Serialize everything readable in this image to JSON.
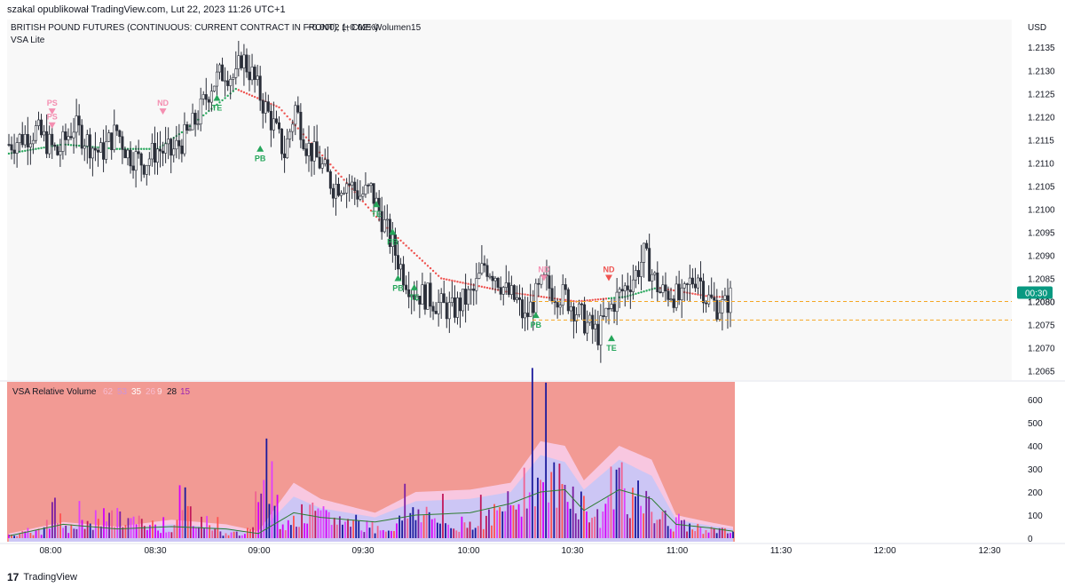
{
  "header": {
    "publisher": "szakal opublikował TradingView.com, Lut 22, 2023 11:26 UTC+1"
  },
  "main_pane": {
    "symbol_line": {
      "title": "BRITISH POUND FUTURES (CONTINUOUS: CURRENT CONTRACT IN FRONT), 1, CME",
      "change": "+0.0002 (+0.02%)",
      "volume_label": "Wolumen15"
    },
    "indicator_label": "VSA Lite",
    "currency": "USD",
    "last_price_label": "1.2080",
    "countdown_label": "00:30",
    "price_ticks": [
      "1.2135",
      "1.2130",
      "1.2125",
      "1.2120",
      "1.2115",
      "1.2110",
      "1.2105",
      "1.2100",
      "1.2095",
      "1.2090",
      "1.2085",
      "1.2080",
      "1.2075",
      "1.2070",
      "1.2065"
    ]
  },
  "volume_pane": {
    "title": "VSA Relative Volume",
    "values": [
      "62",
      "53",
      "35",
      "26",
      "9",
      "28",
      "15"
    ],
    "value_colors": [
      "#f8bbd0",
      "#ce93d8",
      "#ffffff",
      "#f8bbd0",
      "#fce4ec",
      "#131722",
      "#9c27b0"
    ],
    "ticks": [
      "600",
      "500",
      "400",
      "300",
      "200",
      "100",
      "0"
    ]
  },
  "time_axis": [
    "08:00",
    "08:30",
    "09:00",
    "09:30",
    "10:00",
    "10:30",
    "11:00",
    "11:30",
    "12:00",
    "12:30"
  ],
  "markers": [
    {
      "text": "PS",
      "color": "#f48fb1"
    },
    {
      "text": "PS",
      "color": "#f48fb1"
    },
    {
      "text": "ND",
      "color": "#f48fb1"
    },
    {
      "text": "TE",
      "color": "#26a65b"
    },
    {
      "text": "PB",
      "color": "#26a65b"
    },
    {
      "text": "TE",
      "color": "#26a65b"
    },
    {
      "text": "PB",
      "color": "#26a65b"
    },
    {
      "text": "PB",
      "color": "#26a65b"
    },
    {
      "text": "TE",
      "color": "#26a65b"
    },
    {
      "text": "ND",
      "color": "#f48fb1"
    },
    {
      "text": "ND",
      "color": "#ef5350"
    },
    {
      "text": "PB",
      "color": "#26a65b"
    },
    {
      "text": "TE",
      "color": "#26a65b"
    }
  ],
  "footer": {
    "brand": "TradingView"
  },
  "colors": {
    "volume_pane_bg": "#f29a94",
    "trail_up": "#26a65b",
    "trail_down": "#ef5350",
    "dashed_level": "#f5a623",
    "price_badge": "#089981"
  },
  "chart_data": [
    {
      "type": "candlestick",
      "ylim": [
        1.2063,
        1.2141
      ],
      "x_ticks": [
        "08:00",
        "08:30",
        "09:00",
        "09:30",
        "10:00",
        "10:30",
        "11:00",
        "11:30",
        "12:00",
        "12:30"
      ],
      "price_path": [
        [
          0,
          1.2114
        ],
        [
          10,
          1.2117
        ],
        [
          18,
          1.2112
        ],
        [
          24,
          1.2118
        ],
        [
          30,
          1.2114
        ],
        [
          34,
          1.2112
        ],
        [
          40,
          1.2117
        ],
        [
          44,
          1.2112
        ],
        [
          50,
          1.211
        ],
        [
          55,
          1.2113
        ],
        [
          60,
          1.2112
        ],
        [
          66,
          1.2116
        ],
        [
          70,
          1.212
        ],
        [
          75,
          1.2127
        ],
        [
          80,
          1.213
        ],
        [
          84,
          1.2128
        ],
        [
          86,
          1.2133
        ],
        [
          90,
          1.2129
        ],
        [
          94,
          1.2123
        ],
        [
          98,
          1.2118
        ],
        [
          102,
          1.2112
        ],
        [
          106,
          1.2122
        ],
        [
          110,
          1.2114
        ],
        [
          115,
          1.211
        ],
        [
          120,
          1.2105
        ],
        [
          125,
          1.2106
        ],
        [
          130,
          1.2103
        ],
        [
          134,
          1.2104
        ],
        [
          138,
          1.2098
        ],
        [
          142,
          1.2092
        ],
        [
          146,
          1.2086
        ],
        [
          150,
          1.2082
        ],
        [
          155,
          1.2081
        ],
        [
          160,
          1.2079
        ],
        [
          164,
          1.2078
        ],
        [
          168,
          1.208
        ],
        [
          172,
          1.2082
        ],
        [
          176,
          1.2088
        ],
        [
          180,
          1.2086
        ],
        [
          184,
          1.2082
        ],
        [
          188,
          1.208
        ],
        [
          191,
          1.2076
        ],
        [
          194,
          1.208
        ],
        [
          198,
          1.2084
        ],
        [
          202,
          1.2082
        ],
        [
          206,
          1.2081
        ],
        [
          210,
          1.2078
        ],
        [
          214,
          1.2075
        ],
        [
          218,
          1.2073
        ],
        [
          221,
          1.2077
        ],
        [
          224,
          1.208
        ],
        [
          228,
          1.2083
        ],
        [
          232,
          1.2086
        ],
        [
          235,
          1.209
        ],
        [
          238,
          1.2086
        ],
        [
          241,
          1.2082
        ],
        [
          245,
          1.2082
        ],
        [
          249,
          1.208
        ],
        [
          252,
          1.2084
        ],
        [
          255,
          1.2086
        ],
        [
          258,
          1.2081
        ],
        [
          262,
          1.2079
        ],
        [
          265,
          1.2079
        ],
        [
          267,
          1.2081
        ]
      ],
      "trail_path": [
        [
          0,
          1.2112
        ],
        [
          20,
          1.2114
        ],
        [
          40,
          1.2113
        ],
        [
          55,
          1.2113
        ],
        [
          65,
          1.2117
        ],
        [
          80,
          1.2124
        ],
        [
          84,
          1.2126
        ],
        [
          100,
          1.2122
        ],
        [
          120,
          1.2109
        ],
        [
          138,
          1.2097
        ],
        [
          160,
          1.2085
        ],
        [
          185,
          1.2082
        ],
        [
          210,
          1.208
        ],
        [
          228,
          1.2081
        ],
        [
          240,
          1.2083
        ],
        [
          260,
          1.2081
        ],
        [
          267,
          1.2081
        ]
      ],
      "dashed_levels": [
        1.208,
        1.2076
      ]
    },
    {
      "type": "bar",
      "title": "VSA Relative Volume",
      "ylim": [
        0,
        600
      ],
      "volume_path": [
        [
          0,
          20
        ],
        [
          12,
          35
        ],
        [
          17,
          150
        ],
        [
          20,
          40
        ],
        [
          35,
          120
        ],
        [
          60,
          50
        ],
        [
          65,
          150
        ],
        [
          80,
          20
        ],
        [
          90,
          40
        ],
        [
          94,
          560
        ],
        [
          100,
          80
        ],
        [
          110,
          130
        ],
        [
          140,
          45
        ],
        [
          150,
          160
        ],
        [
          164,
          50
        ],
        [
          180,
          130
        ],
        [
          186,
          180
        ],
        [
          193,
          370
        ],
        [
          197,
          300
        ],
        [
          205,
          280
        ],
        [
          218,
          90
        ],
        [
          224,
          380
        ],
        [
          228,
          240
        ],
        [
          245,
          70
        ],
        [
          255,
          55
        ],
        [
          267,
          30
        ]
      ],
      "band_outer": [
        [
          0,
          20
        ],
        [
          20,
          70
        ],
        [
          40,
          50
        ],
        [
          60,
          80
        ],
        [
          80,
          60
        ],
        [
          92,
          30
        ],
        [
          105,
          240
        ],
        [
          115,
          170
        ],
        [
          135,
          110
        ],
        [
          150,
          200
        ],
        [
          170,
          210
        ],
        [
          185,
          240
        ],
        [
          196,
          420
        ],
        [
          205,
          400
        ],
        [
          212,
          250
        ],
        [
          225,
          400
        ],
        [
          237,
          340
        ],
        [
          246,
          100
        ],
        [
          258,
          70
        ],
        [
          267,
          50
        ]
      ],
      "band_inner": [
        [
          0,
          15
        ],
        [
          20,
          55
        ],
        [
          40,
          40
        ],
        [
          60,
          60
        ],
        [
          80,
          45
        ],
        [
          92,
          20
        ],
        [
          105,
          180
        ],
        [
          115,
          130
        ],
        [
          135,
          90
        ],
        [
          150,
          160
        ],
        [
          170,
          170
        ],
        [
          185,
          200
        ],
        [
          196,
          360
        ],
        [
          205,
          330
        ],
        [
          212,
          210
        ],
        [
          225,
          340
        ],
        [
          237,
          270
        ],
        [
          246,
          80
        ],
        [
          258,
          55
        ],
        [
          267,
          40
        ]
      ],
      "ma_path": [
        [
          0,
          10
        ],
        [
          20,
          60
        ],
        [
          40,
          40
        ],
        [
          60,
          50
        ],
        [
          80,
          40
        ],
        [
          92,
          20
        ],
        [
          105,
          110
        ],
        [
          115,
          90
        ],
        [
          135,
          70
        ],
        [
          150,
          100
        ],
        [
          170,
          110
        ],
        [
          185,
          150
        ],
        [
          196,
          200
        ],
        [
          205,
          210
        ],
        [
          212,
          120
        ],
        [
          225,
          210
        ],
        [
          237,
          170
        ],
        [
          246,
          60
        ],
        [
          258,
          45
        ],
        [
          267,
          30
        ]
      ]
    }
  ]
}
